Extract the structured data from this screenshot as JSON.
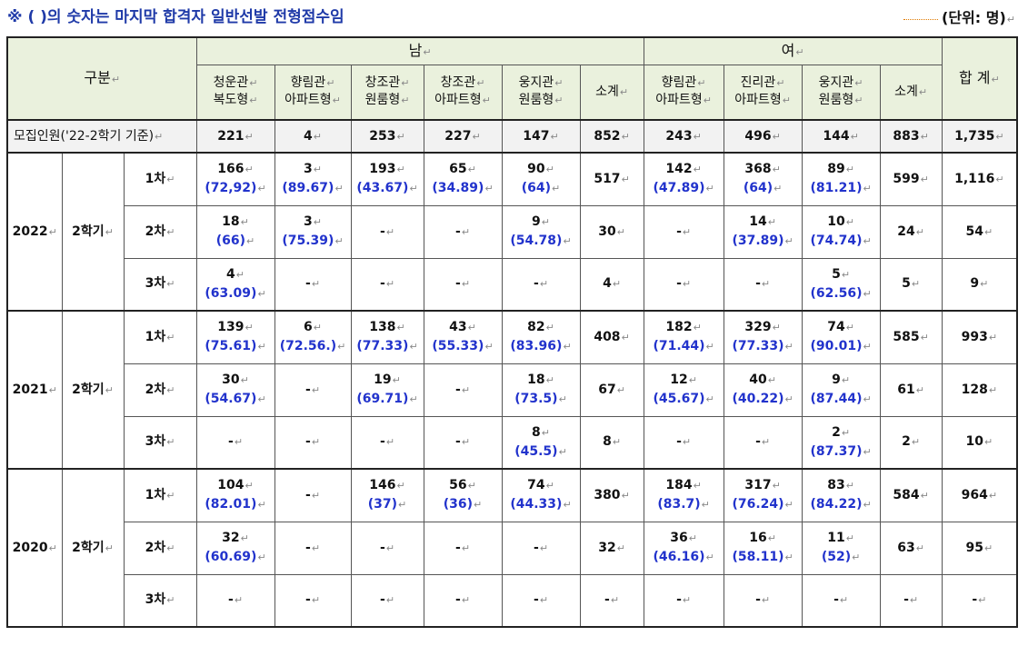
{
  "title": "※ ( )의 숫자는 마지막 합격자 일반선발 전형점수임",
  "unit": "(단위: 명)",
  "header": {
    "category": "구분",
    "male": "남",
    "female": "여",
    "total": "합 계",
    "male_cols": [
      [
        "청운관",
        "복도형"
      ],
      [
        "향림관",
        "아파트형"
      ],
      [
        "창조관",
        "원룸형"
      ],
      [
        "창조관",
        "아파트형"
      ],
      [
        "웅지관",
        "원룸형"
      ],
      [
        "소계"
      ]
    ],
    "female_cols": [
      [
        "향림관",
        "아파트형"
      ],
      [
        "진리관",
        "아파트형"
      ],
      [
        "웅지관",
        "원룸형"
      ],
      [
        "소계"
      ]
    ]
  },
  "recruit": {
    "label": "모집인원('22-2학기 기준)",
    "values": [
      "221",
      "4",
      "253",
      "227",
      "147",
      "852",
      "243",
      "496",
      "144",
      "883",
      "1,735"
    ]
  },
  "years": [
    {
      "year": "2022",
      "term": "2학기",
      "rows": [
        {
          "round": "1차",
          "cells": [
            [
              "166",
              "(72,92)"
            ],
            [
              "3",
              "(89.67)"
            ],
            [
              "193",
              "(43.67)"
            ],
            [
              "65",
              "(34.89)"
            ],
            [
              "90",
              "(64)"
            ],
            [
              "517"
            ],
            [
              "142",
              "(47.89)"
            ],
            [
              "368",
              "(64)"
            ],
            [
              "89",
              "(81.21)"
            ],
            [
              "599"
            ],
            [
              "1,116"
            ]
          ]
        },
        {
          "round": "2차",
          "cells": [
            [
              "18",
              "(66)"
            ],
            [
              "3",
              "(75.39)"
            ],
            [
              "-"
            ],
            [
              "-"
            ],
            [
              "9",
              "(54.78)"
            ],
            [
              "30"
            ],
            [
              "-"
            ],
            [
              "14",
              "(37.89)"
            ],
            [
              "10",
              "(74.74)"
            ],
            [
              "24"
            ],
            [
              "54"
            ]
          ]
        },
        {
          "round": "3차",
          "cells": [
            [
              "4",
              "(63.09)"
            ],
            [
              "-"
            ],
            [
              "-"
            ],
            [
              "-"
            ],
            [
              "-"
            ],
            [
              "4"
            ],
            [
              "-"
            ],
            [
              "-"
            ],
            [
              "5",
              "(62.56)"
            ],
            [
              "5"
            ],
            [
              "9"
            ]
          ]
        }
      ]
    },
    {
      "year": "2021",
      "term": "2학기",
      "rows": [
        {
          "round": "1차",
          "cells": [
            [
              "139",
              "(75.61)"
            ],
            [
              "6",
              "(72.56.)"
            ],
            [
              "138",
              "(77.33)"
            ],
            [
              "43",
              "(55.33)"
            ],
            [
              "82",
              "(83.96)"
            ],
            [
              "408"
            ],
            [
              "182",
              "(71.44)"
            ],
            [
              "329",
              "(77.33)"
            ],
            [
              "74",
              "(90.01)"
            ],
            [
              "585"
            ],
            [
              "993"
            ]
          ]
        },
        {
          "round": "2차",
          "cells": [
            [
              "30",
              "(54.67)"
            ],
            [
              "-"
            ],
            [
              "19",
              "(69.71)"
            ],
            [
              "-"
            ],
            [
              "18",
              "(73.5)"
            ],
            [
              "67"
            ],
            [
              "12",
              "(45.67)"
            ],
            [
              "40",
              "(40.22)"
            ],
            [
              "9",
              "(87.44)"
            ],
            [
              "61"
            ],
            [
              "128"
            ]
          ]
        },
        {
          "round": "3차",
          "cells": [
            [
              "-"
            ],
            [
              "-"
            ],
            [
              "-"
            ],
            [
              "-"
            ],
            [
              "8",
              "(45.5)"
            ],
            [
              "8"
            ],
            [
              "-"
            ],
            [
              "-"
            ],
            [
              "2",
              "(87.37)"
            ],
            [
              "2"
            ],
            [
              "10"
            ]
          ]
        }
      ]
    },
    {
      "year": "2020",
      "term": "2학기",
      "rows": [
        {
          "round": "1차",
          "cells": [
            [
              "104",
              "(82.01)"
            ],
            [
              "-"
            ],
            [
              "146",
              "(37)"
            ],
            [
              "56",
              "(36)"
            ],
            [
              "74",
              "(44.33)"
            ],
            [
              "380"
            ],
            [
              "184",
              "(83.7)"
            ],
            [
              "317",
              "(76.24)"
            ],
            [
              "83",
              "(84.22)"
            ],
            [
              "584"
            ],
            [
              "964"
            ]
          ]
        },
        {
          "round": "2차",
          "cells": [
            [
              "32",
              "(60.69)"
            ],
            [
              "-"
            ],
            [
              "-"
            ],
            [
              "-"
            ],
            [
              "-"
            ],
            [
              "32"
            ],
            [
              "36",
              "(46.16)"
            ],
            [
              "16",
              "(58.11)"
            ],
            [
              "11",
              "(52)"
            ],
            [
              "63"
            ],
            [
              "95"
            ]
          ]
        },
        {
          "round": "3차",
          "cells": [
            [
              "-"
            ],
            [
              "-"
            ],
            [
              "-"
            ],
            [
              "-"
            ],
            [
              "-"
            ],
            [
              "-"
            ],
            [
              "-"
            ],
            [
              "-"
            ],
            [
              "-"
            ],
            [
              "-"
            ],
            [
              "-"
            ]
          ]
        }
      ]
    }
  ]
}
